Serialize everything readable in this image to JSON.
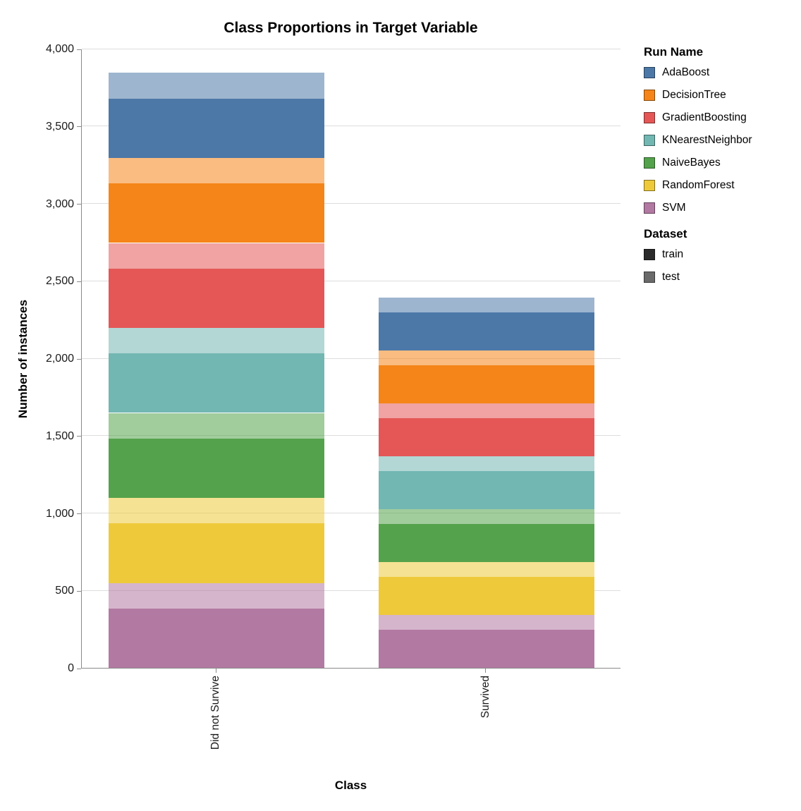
{
  "legend": {
    "run_title": "Run Name",
    "dataset_title": "Dataset"
  },
  "chart_data": {
    "type": "bar",
    "stacked": true,
    "title": "Class Proportions in Target Variable",
    "xlabel": "Class",
    "ylabel": "Number of instances",
    "categories": [
      "Did not Survive",
      "Survived"
    ],
    "ylim": [
      0,
      4000
    ],
    "yticks": [
      0,
      500,
      1000,
      1500,
      2000,
      2500,
      3000,
      3500,
      4000
    ],
    "grid": true,
    "legend_position": "right",
    "stack_order_bottom_to_top": [
      "SVM",
      "RandomForest",
      "NaiveBayes",
      "KNearestNeighbor",
      "GradientBoosting",
      "DecisionTree",
      "AdaBoost"
    ],
    "dataset_stack_order": [
      "train",
      "test"
    ],
    "dataset_opacity": {
      "train": 1.0,
      "test": 0.55
    },
    "series": [
      {
        "name": "AdaBoost",
        "color": "#4c78a8",
        "values": {
          "train": [
            384,
            245
          ],
          "test": [
            165,
            97
          ]
        }
      },
      {
        "name": "DecisionTree",
        "color": "#f58518",
        "values": {
          "train": [
            384,
            245
          ],
          "test": [
            165,
            97
          ]
        }
      },
      {
        "name": "GradientBoosting",
        "color": "#e45756",
        "values": {
          "train": [
            384,
            245
          ],
          "test": [
            165,
            97
          ]
        }
      },
      {
        "name": "KNearestNeighbor",
        "color": "#72b7b2",
        "values": {
          "train": [
            384,
            245
          ],
          "test": [
            165,
            97
          ]
        }
      },
      {
        "name": "NaiveBayes",
        "color": "#54a24b",
        "values": {
          "train": [
            384,
            245
          ],
          "test": [
            165,
            97
          ]
        }
      },
      {
        "name": "RandomForest",
        "color": "#eeca3b",
        "values": {
          "train": [
            384,
            245
          ],
          "test": [
            165,
            97
          ]
        }
      },
      {
        "name": "SVM",
        "color": "#b279a2",
        "values": {
          "train": [
            384,
            245
          ],
          "test": [
            165,
            97
          ]
        }
      }
    ],
    "datasets": [
      {
        "name": "train",
        "color": "#2b2b2b"
      },
      {
        "name": "test",
        "color": "#6a6a6a"
      }
    ],
    "stack_totals": {
      "Did not Survive": 3843,
      "Survived": 2394
    }
  }
}
